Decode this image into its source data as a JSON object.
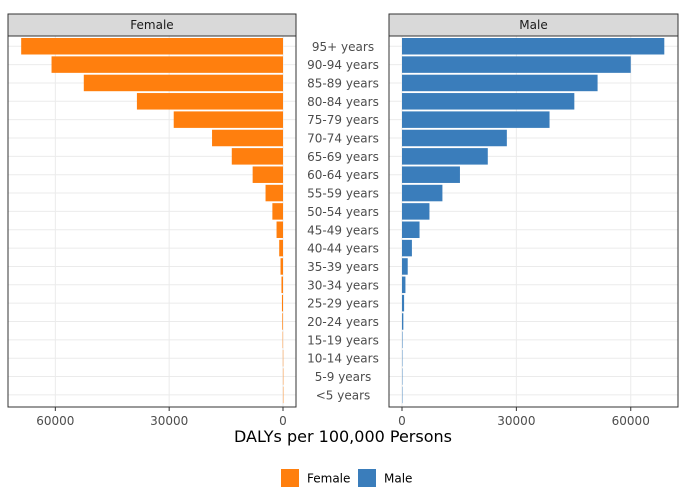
{
  "chart_data": {
    "type": "bar",
    "orientation": "horizontal-pyramid",
    "categories": [
      "95+ years",
      "90-94 years",
      "85-89 years",
      "80-84 years",
      "75-79 years",
      "70-74 years",
      "65-69 years",
      "60-64 years",
      "55-59 years",
      "50-54 years",
      "45-49 years",
      "40-44 years",
      "35-39 years",
      "30-34 years",
      "25-29 years",
      "20-24 years",
      "15-19 years",
      "10-14 years",
      "5-9 years",
      "<5 years"
    ],
    "series": [
      {
        "name": "Female",
        "color": "#ff7f0e",
        "values": [
          69000,
          61000,
          52500,
          38500,
          28800,
          18700,
          13500,
          8000,
          4600,
          2800,
          1700,
          1000,
          650,
          400,
          280,
          180,
          90,
          40,
          20,
          15
        ]
      },
      {
        "name": "Male",
        "color": "#3a7dbb",
        "values": [
          68800,
          60000,
          51300,
          45200,
          38700,
          27500,
          22500,
          15200,
          10600,
          7200,
          4600,
          2600,
          1500,
          900,
          550,
          350,
          130,
          60,
          30,
          20
        ]
      }
    ],
    "panels": [
      "Female",
      "Male"
    ],
    "xlabel": "DALYs per 100,000 Persons",
    "xticks": [
      0,
      30000,
      60000
    ],
    "xtick_labels": [
      "0",
      "30000",
      "60000"
    ],
    "xlim": [
      0,
      72000
    ],
    "legend": [
      "Female",
      "Male"
    ],
    "legend_position": "bottom"
  }
}
